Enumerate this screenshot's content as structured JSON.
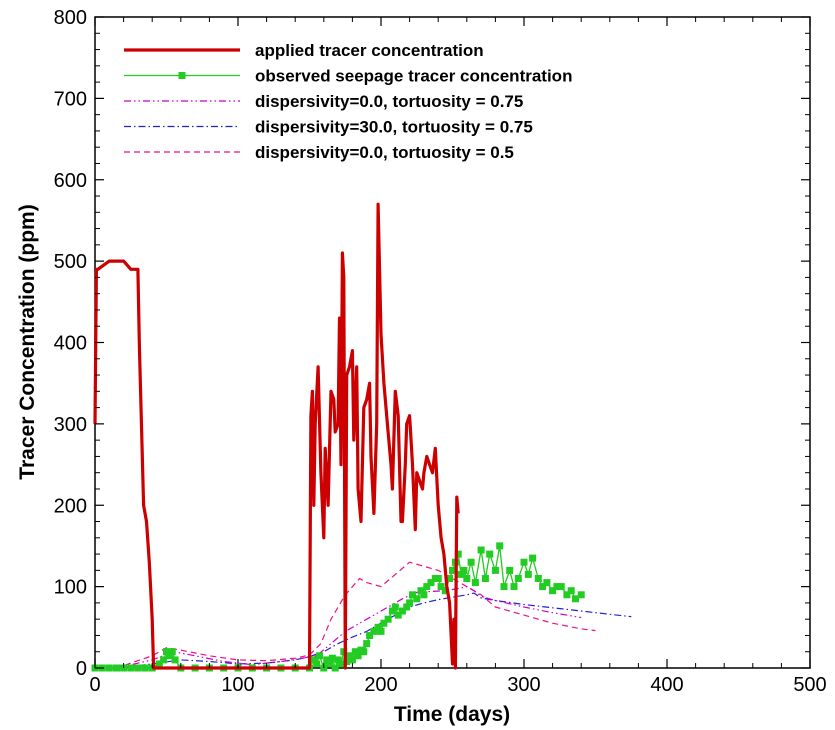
{
  "chart_data": {
    "type": "line",
    "title": "",
    "xlabel": "Time (days)",
    "ylabel": "Tracer Concentration (ppm)",
    "xlim": [
      0,
      500
    ],
    "ylim": [
      0,
      800
    ],
    "xticks": [
      0,
      100,
      200,
      300,
      400,
      500
    ],
    "yticks": [
      0,
      100,
      200,
      300,
      400,
      500,
      600,
      700,
      800
    ],
    "grid": false,
    "legend_position": "top-left",
    "series": [
      {
        "name": "applied tracer concentration",
        "color": "#cc0000",
        "style": "solid-thick",
        "marker": "none",
        "x": [
          0,
          1,
          2,
          10,
          20,
          25,
          28,
          30,
          31,
          34,
          36,
          38,
          40,
          41,
          42,
          150,
          151,
          152,
          153,
          154,
          156,
          158,
          160,
          161,
          163,
          165,
          167,
          168,
          170,
          171,
          172,
          173,
          174,
          175,
          176,
          178,
          180,
          181,
          183,
          184,
          186,
          188,
          190,
          192,
          193,
          195,
          197,
          198,
          200,
          202,
          203,
          205,
          207,
          208,
          210,
          212,
          214,
          215,
          217,
          218,
          220,
          222,
          224,
          225,
          227,
          229,
          230,
          232,
          234,
          236,
          238,
          240,
          242,
          244,
          246,
          248,
          250,
          251,
          252,
          253,
          254
        ],
        "y": [
          300,
          490,
          490,
          500,
          500,
          490,
          490,
          490,
          400,
          200,
          180,
          130,
          60,
          0,
          0,
          0,
          310,
          340,
          200,
          300,
          370,
          240,
          160,
          270,
          200,
          340,
          330,
          290,
          300,
          430,
          250,
          510,
          480,
          0,
          360,
          370,
          390,
          280,
          370,
          220,
          180,
          320,
          330,
          350,
          260,
          190,
          300,
          570,
          410,
          350,
          330,
          290,
          250,
          220,
          340,
          310,
          180,
          180,
          250,
          300,
          310,
          250,
          170,
          240,
          230,
          220,
          240,
          260,
          250,
          240,
          270,
          200,
          160,
          140,
          100,
          80,
          5,
          60,
          0,
          210,
          190
        ]
      },
      {
        "name": "observed seepage tracer concentration",
        "color": "#22cc22",
        "style": "solid",
        "marker": "square",
        "x": [
          0,
          5,
          10,
          15,
          20,
          25,
          30,
          35,
          40,
          45,
          48,
          50,
          52,
          54,
          56,
          60,
          70,
          80,
          90,
          100,
          110,
          120,
          130,
          140,
          150,
          153,
          155,
          157,
          160,
          162,
          164,
          166,
          168,
          170,
          172,
          174,
          176,
          178,
          180,
          182,
          184,
          186,
          188,
          190,
          192,
          195,
          198,
          200,
          202,
          205,
          208,
          210,
          212,
          215,
          218,
          220,
          222,
          225,
          228,
          230,
          232,
          235,
          238,
          240,
          242,
          245,
          248,
          250,
          252,
          254,
          256,
          258,
          260,
          263,
          266,
          270,
          273,
          276,
          280,
          283,
          286,
          290,
          293,
          296,
          300,
          303,
          306,
          310,
          313,
          316,
          320,
          323,
          326,
          330,
          333,
          336,
          340
        ],
        "y": [
          0,
          0,
          0,
          0,
          0,
          0,
          0,
          0,
          0,
          5,
          10,
          20,
          15,
          20,
          10,
          0,
          0,
          0,
          0,
          0,
          0,
          0,
          0,
          0,
          0,
          10,
          5,
          15,
          0,
          10,
          5,
          12,
          0,
          10,
          5,
          20,
          8,
          15,
          10,
          20,
          15,
          22,
          20,
          30,
          40,
          45,
          50,
          45,
          55,
          60,
          70,
          75,
          65,
          70,
          75,
          80,
          90,
          85,
          95,
          90,
          100,
          105,
          110,
          110,
          100,
          95,
          110,
          120,
          130,
          140,
          115,
          120,
          110,
          130,
          105,
          145,
          110,
          140,
          120,
          150,
          100,
          120,
          100,
          110,
          130,
          115,
          135,
          110,
          100,
          105,
          95,
          100,
          100,
          90,
          95,
          85,
          90
        ]
      },
      {
        "name": "dispersivity=0.0, tortuosity = 0.75",
        "color": "#cc00cc",
        "style": "dash-dot-dot",
        "marker": "none",
        "x": [
          0,
          20,
          40,
          55,
          70,
          90,
          110,
          130,
          145,
          155,
          165,
          175,
          185,
          195,
          205,
          215,
          225,
          235,
          245,
          255,
          260,
          265,
          270,
          280,
          300,
          320,
          340
        ],
        "y": [
          0,
          2,
          10,
          20,
          15,
          8,
          4,
          8,
          12,
          15,
          30,
          45,
          55,
          65,
          75,
          85,
          93,
          94,
          95,
          98,
          100,
          95,
          88,
          83,
          75,
          68,
          62
        ]
      },
      {
        "name": "dispersivity=30.0, tortuosity = 0.75",
        "color": "#2222cc",
        "style": "dash-dot",
        "marker": "none",
        "x": [
          0,
          20,
          40,
          60,
          80,
          100,
          120,
          140,
          150,
          160,
          170,
          180,
          190,
          200,
          210,
          220,
          230,
          240,
          250,
          260,
          265,
          270,
          280,
          300,
          320,
          340,
          360,
          375
        ],
        "y": [
          0,
          1,
          5,
          10,
          8,
          5,
          6,
          10,
          14,
          20,
          30,
          38,
          45,
          55,
          65,
          75,
          80,
          84,
          87,
          90,
          92,
          86,
          83,
          78,
          74,
          70,
          66,
          63
        ]
      },
      {
        "name": "dispersivity=0.0, tortuosity = 0.5",
        "color": "#ee1188",
        "style": "dashed",
        "marker": "none",
        "x": [
          0,
          20,
          40,
          50,
          60,
          80,
          100,
          120,
          140,
          150,
          158,
          165,
          175,
          185,
          190,
          200,
          210,
          220,
          230,
          240,
          250,
          255,
          260,
          265,
          270,
          280,
          300,
          320,
          340,
          350
        ],
        "y": [
          0,
          3,
          15,
          25,
          22,
          15,
          10,
          9,
          12,
          16,
          30,
          60,
          90,
          110,
          105,
          100,
          115,
          130,
          125,
          120,
          110,
          105,
          100,
          95,
          90,
          75,
          65,
          55,
          48,
          46
        ]
      }
    ]
  }
}
